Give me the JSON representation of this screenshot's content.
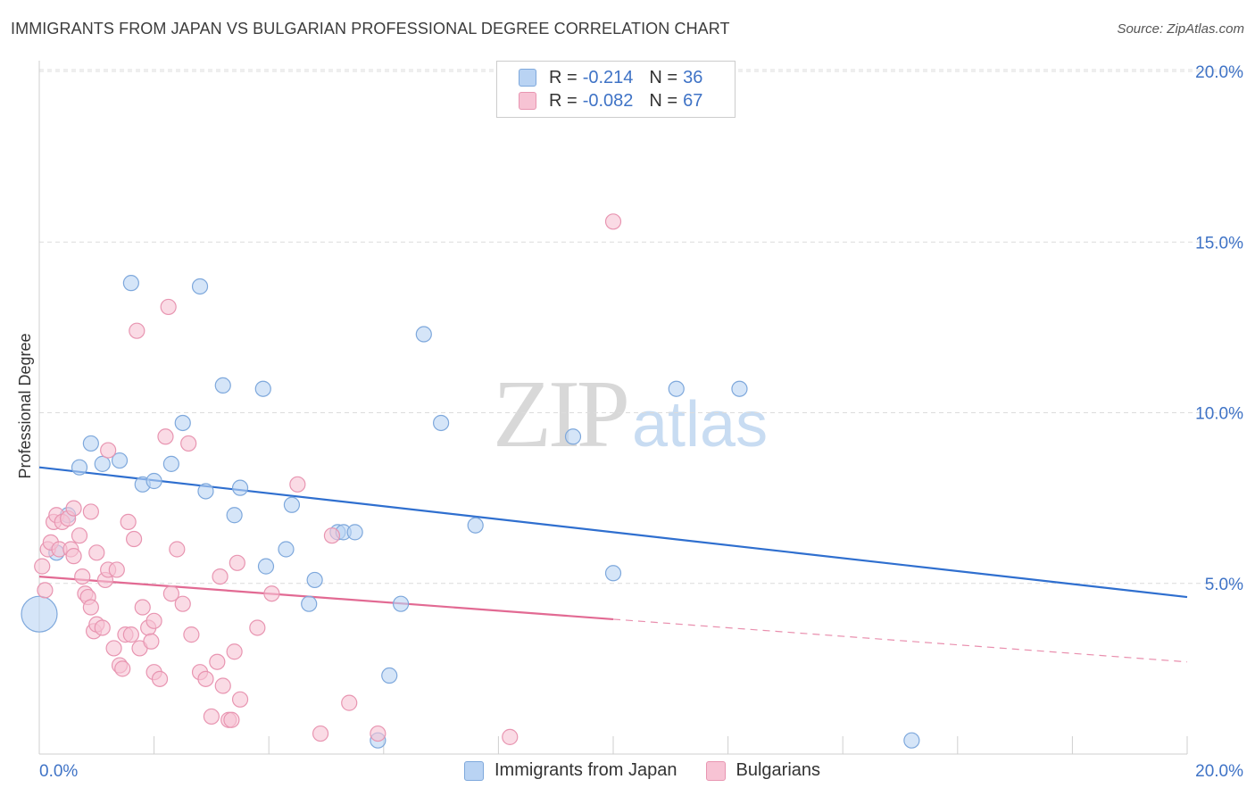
{
  "header": {
    "title": "IMMIGRANTS FROM JAPAN VS BULGARIAN PROFESSIONAL DEGREE CORRELATION CHART",
    "source": "Source: ZipAtlas.com"
  },
  "watermark": {
    "zip": "ZIP",
    "atlas": "atlas"
  },
  "colors": {
    "japan_fill": "#b9d3f3",
    "japan_stroke": "#7ea8dc",
    "japan_line": "#2f6fcf",
    "bulgarian_fill": "#f7c3d4",
    "bulgarian_stroke": "#e895b1",
    "bulgarian_line": "#e26a93",
    "tick_label": "#3f73c6",
    "grid": "#dcdcdc"
  },
  "legend": {
    "rows": [
      {
        "r_label": "R =",
        "r_value": "-0.214",
        "n_label": "N =",
        "n_value": "36"
      },
      {
        "r_label": "R =",
        "r_value": "-0.082",
        "n_label": "N =",
        "n_value": "67"
      }
    ]
  },
  "bottom_legend": {
    "japan": "Immigrants from Japan",
    "bulgarians": "Bulgarians"
  },
  "chart_data": {
    "type": "scatter",
    "title": "IMMIGRANTS FROM JAPAN VS BULGARIAN PROFESSIONAL DEGREE CORRELATION CHART",
    "xlabel": "",
    "ylabel": "Professional Degree",
    "xlim": [
      0,
      20
    ],
    "ylim": [
      0,
      20
    ],
    "x_tick_labels": [
      "0.0%",
      "20.0%"
    ],
    "y_ticks": [
      5,
      10,
      15,
      20
    ],
    "y_tick_labels": [
      "5.0%",
      "10.0%",
      "15.0%",
      "20.0%"
    ],
    "grid": true,
    "legend_position": "top-center",
    "series": [
      {
        "name": "Immigrants from Japan",
        "R": -0.214,
        "N": 36,
        "trend": {
          "x": [
            0,
            20
          ],
          "y": [
            8.4,
            4.6
          ],
          "dashed_from": null
        },
        "points": [
          {
            "x": 0.0,
            "y": 4.1,
            "size": "large"
          },
          {
            "x": 0.3,
            "y": 5.9
          },
          {
            "x": 0.5,
            "y": 7.0
          },
          {
            "x": 0.7,
            "y": 8.4
          },
          {
            "x": 0.9,
            "y": 9.1
          },
          {
            "x": 1.1,
            "y": 8.5
          },
          {
            "x": 1.4,
            "y": 8.6
          },
          {
            "x": 1.6,
            "y": 13.8
          },
          {
            "x": 1.8,
            "y": 7.9
          },
          {
            "x": 2.0,
            "y": 8.0
          },
          {
            "x": 2.3,
            "y": 8.5
          },
          {
            "x": 2.5,
            "y": 9.7
          },
          {
            "x": 2.8,
            "y": 13.7
          },
          {
            "x": 2.9,
            "y": 7.7
          },
          {
            "x": 3.2,
            "y": 10.8
          },
          {
            "x": 3.4,
            "y": 7.0
          },
          {
            "x": 3.5,
            "y": 7.8
          },
          {
            "x": 3.9,
            "y": 10.7
          },
          {
            "x": 3.95,
            "y": 5.5
          },
          {
            "x": 4.3,
            "y": 6.0
          },
          {
            "x": 4.4,
            "y": 7.3
          },
          {
            "x": 4.7,
            "y": 4.4
          },
          {
            "x": 4.8,
            "y": 5.1
          },
          {
            "x": 5.2,
            "y": 6.5
          },
          {
            "x": 5.3,
            "y": 6.5
          },
          {
            "x": 5.5,
            "y": 6.5
          },
          {
            "x": 5.9,
            "y": 0.4
          },
          {
            "x": 6.1,
            "y": 2.3
          },
          {
            "x": 6.3,
            "y": 4.4
          },
          {
            "x": 6.7,
            "y": 12.3
          },
          {
            "x": 7.0,
            "y": 9.7
          },
          {
            "x": 7.6,
            "y": 6.7
          },
          {
            "x": 9.3,
            "y": 9.3
          },
          {
            "x": 10.0,
            "y": 5.3
          },
          {
            "x": 11.1,
            "y": 10.7
          },
          {
            "x": 12.2,
            "y": 10.7
          },
          {
            "x": 15.2,
            "y": 0.4
          }
        ]
      },
      {
        "name": "Bulgarians",
        "R": -0.082,
        "N": 67,
        "trend": {
          "x": [
            0,
            20
          ],
          "y": [
            5.2,
            2.7
          ],
          "dashed_from": 10.0
        },
        "points": [
          {
            "x": 0.05,
            "y": 5.5
          },
          {
            "x": 0.1,
            "y": 4.8
          },
          {
            "x": 0.15,
            "y": 6.0
          },
          {
            "x": 0.2,
            "y": 6.2
          },
          {
            "x": 0.25,
            "y": 6.8
          },
          {
            "x": 0.3,
            "y": 7.0
          },
          {
            "x": 0.35,
            "y": 6.0
          },
          {
            "x": 0.4,
            "y": 6.8
          },
          {
            "x": 0.5,
            "y": 6.9
          },
          {
            "x": 0.55,
            "y": 6.0
          },
          {
            "x": 0.6,
            "y": 5.8
          },
          {
            "x": 0.6,
            "y": 7.2
          },
          {
            "x": 0.7,
            "y": 6.4
          },
          {
            "x": 0.75,
            "y": 5.2
          },
          {
            "x": 0.8,
            "y": 4.7
          },
          {
            "x": 0.85,
            "y": 4.6
          },
          {
            "x": 0.9,
            "y": 7.1
          },
          {
            "x": 0.9,
            "y": 4.3
          },
          {
            "x": 0.95,
            "y": 3.6
          },
          {
            "x": 1.0,
            "y": 5.9
          },
          {
            "x": 1.0,
            "y": 3.8
          },
          {
            "x": 1.1,
            "y": 3.7
          },
          {
            "x": 1.15,
            "y": 5.1
          },
          {
            "x": 1.2,
            "y": 8.9
          },
          {
            "x": 1.2,
            "y": 5.4
          },
          {
            "x": 1.3,
            "y": 3.1
          },
          {
            "x": 1.35,
            "y": 5.4
          },
          {
            "x": 1.4,
            "y": 2.6
          },
          {
            "x": 1.45,
            "y": 2.5
          },
          {
            "x": 1.5,
            "y": 3.5
          },
          {
            "x": 1.55,
            "y": 6.8
          },
          {
            "x": 1.6,
            "y": 3.5
          },
          {
            "x": 1.65,
            "y": 6.3
          },
          {
            "x": 1.7,
            "y": 12.4
          },
          {
            "x": 1.75,
            "y": 3.1
          },
          {
            "x": 1.8,
            "y": 4.3
          },
          {
            "x": 1.9,
            "y": 3.7
          },
          {
            "x": 1.95,
            "y": 3.3
          },
          {
            "x": 2.0,
            "y": 3.9
          },
          {
            "x": 2.0,
            "y": 2.4
          },
          {
            "x": 2.1,
            "y": 2.2
          },
          {
            "x": 2.2,
            "y": 9.3
          },
          {
            "x": 2.25,
            "y": 13.1
          },
          {
            "x": 2.3,
            "y": 4.7
          },
          {
            "x": 2.4,
            "y": 6.0
          },
          {
            "x": 2.5,
            "y": 4.4
          },
          {
            "x": 2.6,
            "y": 9.1
          },
          {
            "x": 2.65,
            "y": 3.5
          },
          {
            "x": 2.8,
            "y": 2.4
          },
          {
            "x": 2.9,
            "y": 2.2
          },
          {
            "x": 3.0,
            "y": 1.1
          },
          {
            "x": 3.1,
            "y": 2.7
          },
          {
            "x": 3.15,
            "y": 5.2
          },
          {
            "x": 3.2,
            "y": 2.0
          },
          {
            "x": 3.3,
            "y": 1.0
          },
          {
            "x": 3.35,
            "y": 1.0
          },
          {
            "x": 3.4,
            "y": 3.0
          },
          {
            "x": 3.45,
            "y": 5.6
          },
          {
            "x": 3.5,
            "y": 1.6
          },
          {
            "x": 3.8,
            "y": 3.7
          },
          {
            "x": 4.05,
            "y": 4.7
          },
          {
            "x": 4.5,
            "y": 7.9
          },
          {
            "x": 4.9,
            "y": 0.6
          },
          {
            "x": 5.1,
            "y": 6.4
          },
          {
            "x": 5.4,
            "y": 1.5
          },
          {
            "x": 5.9,
            "y": 0.6
          },
          {
            "x": 8.2,
            "y": 0.5
          },
          {
            "x": 10.0,
            "y": 15.6
          }
        ]
      }
    ]
  }
}
